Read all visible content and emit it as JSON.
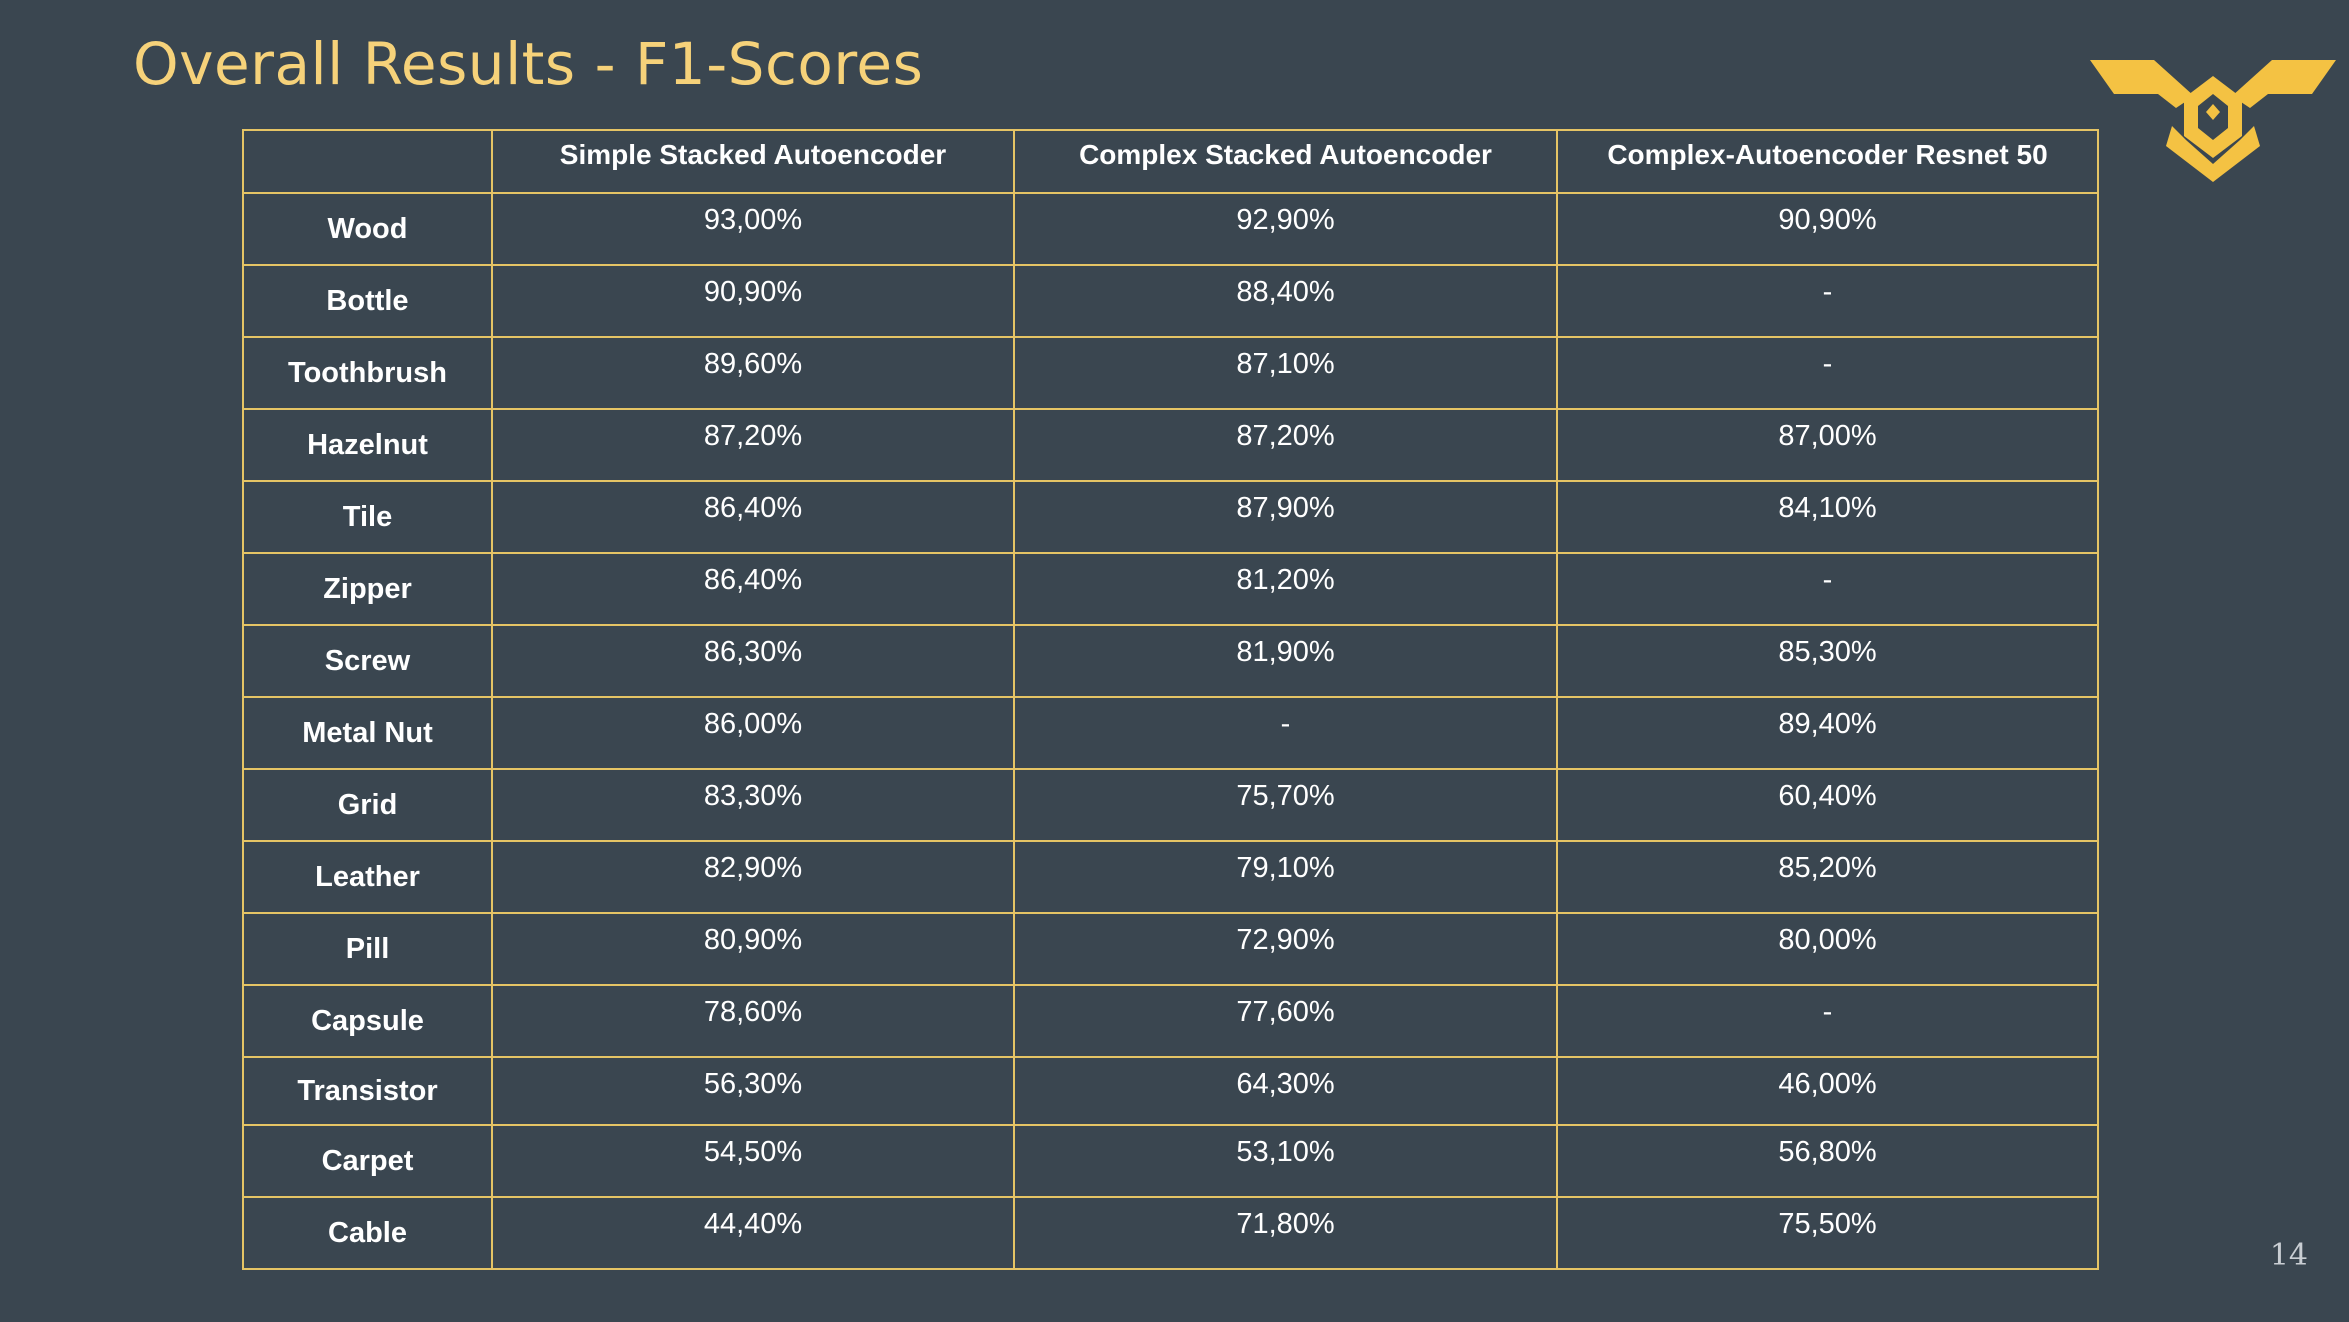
{
  "slide": {
    "title": "Overall Results - F1-Scores",
    "page_number": "14",
    "accent_color": "#f6d27a",
    "border_color": "#e5c465",
    "background_color": "#3a4650",
    "logo_icon": "winged-shield-logo-icon"
  },
  "table": {
    "headers": [
      "",
      "Simple Stacked Autoencoder",
      "Complex Stacked Autoencoder",
      "Complex-Autoencoder Resnet 50"
    ],
    "rows": [
      {
        "label": "Wood",
        "values": [
          "93,00%",
          "92,90%",
          "90,90%"
        ]
      },
      {
        "label": "Bottle",
        "values": [
          "90,90%",
          "88,40%",
          "-"
        ]
      },
      {
        "label": "Toothbrush",
        "values": [
          "89,60%",
          "87,10%",
          "-"
        ]
      },
      {
        "label": "Hazelnut",
        "values": [
          "87,20%",
          "87,20%",
          "87,00%"
        ]
      },
      {
        "label": "Tile",
        "values": [
          "86,40%",
          "87,90%",
          "84,10%"
        ]
      },
      {
        "label": "Zipper",
        "values": [
          "86,40%",
          "81,20%",
          "-"
        ]
      },
      {
        "label": "Screw",
        "values": [
          "86,30%",
          "81,90%",
          "85,30%"
        ]
      },
      {
        "label": "Metal Nut",
        "values": [
          "86,00%",
          "-",
          "89,40%"
        ]
      },
      {
        "label": "Grid",
        "values": [
          "83,30%",
          "75,70%",
          "60,40%"
        ]
      },
      {
        "label": "Leather",
        "values": [
          "82,90%",
          "79,10%",
          "85,20%"
        ]
      },
      {
        "label": "Pill",
        "values": [
          "80,90%",
          "72,90%",
          "80,00%"
        ]
      },
      {
        "label": "Capsule",
        "values": [
          "78,60%",
          "77,60%",
          "-"
        ]
      },
      {
        "label": "Transistor",
        "values": [
          "56,30%",
          "64,30%",
          "46,00%"
        ]
      },
      {
        "label": "Carpet",
        "values": [
          "54,50%",
          "53,10%",
          "56,80%"
        ]
      },
      {
        "label": "Cable",
        "values": [
          "44,40%",
          "71,80%",
          "75,50%"
        ]
      }
    ]
  }
}
